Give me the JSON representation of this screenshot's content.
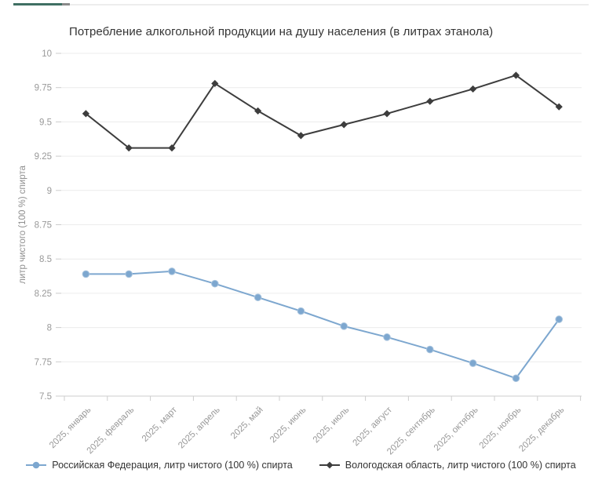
{
  "top_bar": {
    "accent_color": "#3f6f63",
    "cap_color": "#8a8a8a",
    "track_color": "#ededed"
  },
  "chart_data": {
    "type": "line",
    "title": "Потребление алкогольной продукции на душу населения (в литрах этанола)",
    "xlabel": "",
    "ylabel": "литр чистого (100 %) спирта",
    "ylim": [
      7.5,
      10
    ],
    "ytick_step": 0.25,
    "ytick_labels": [
      "7.5",
      "7.75",
      "8",
      "8.25",
      "8.5",
      "8.75",
      "9",
      "9.25",
      "9.5",
      "9.75",
      "10"
    ],
    "grid": true,
    "legend_position": "bottom",
    "categories": [
      "2025, январь",
      "2025, февраль",
      "2025, март",
      "2025, апрель",
      "2025, май",
      "2025, июнь",
      "2025, июль",
      "2025, август",
      "2025, сентябрь",
      "2025, октябрь",
      "2025, ноябрь",
      "2025, декабрь"
    ],
    "series": [
      {
        "name": "Российская Федерация, литр чистого (100 %) спирта",
        "marker": "circle",
        "color": "#7da7cf",
        "values": [
          8.39,
          8.39,
          8.41,
          8.32,
          8.22,
          8.12,
          8.01,
          7.93,
          7.84,
          7.74,
          7.63,
          8.06
        ]
      },
      {
        "name": "Вологодская область, литр чистого (100 %) спирта",
        "marker": "diamond",
        "color": "#3d3d3d",
        "values": [
          9.56,
          9.31,
          9.31,
          9.78,
          9.58,
          9.4,
          9.48,
          9.56,
          9.65,
          9.74,
          9.84,
          9.61
        ]
      }
    ],
    "style": {
      "gridline_color": "#ececec",
      "axis_color": "#cccccc",
      "tick_label_color": "#999999",
      "axis_title_color": "#8f8f8f",
      "title_color": "#333333"
    }
  }
}
